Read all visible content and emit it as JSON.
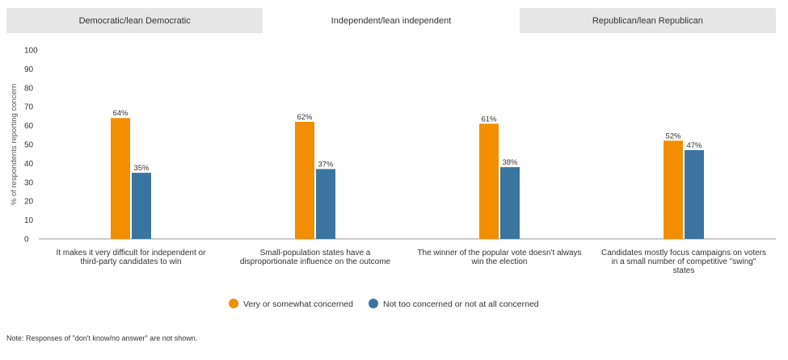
{
  "tabs": [
    {
      "label": "Democratic/lean Democratic",
      "active": false
    },
    {
      "label": "Independent/lean independent",
      "active": true
    },
    {
      "label": "Republican/lean Republican",
      "active": false
    }
  ],
  "note": "Note: Responses of \"don't know/no answer\" are not shown.",
  "colors": {
    "series_0": "#f28e00",
    "series_1": "#3a759f"
  },
  "chart_data": {
    "type": "bar",
    "title": "",
    "ylabel": "% of respondents reporting concern",
    "ylim": [
      0,
      100
    ],
    "yticks": [
      0,
      10,
      20,
      30,
      40,
      50,
      60,
      70,
      80,
      90,
      100
    ],
    "grid": false,
    "legend": "bottom",
    "categories": [
      [
        "It makes it very difficult for independent or",
        "third-party candidates to win"
      ],
      [
        "Small-population states have a",
        "disproportionate influence on the outcome"
      ],
      [
        "The winner of the popular vote doesn't always",
        "win the election"
      ],
      [
        "Candidates mostly focus campaigns on voters",
        "in a small number of competitive \"swing\"",
        "states"
      ]
    ],
    "series": [
      {
        "name": "Very or somewhat concerned",
        "values": [
          64,
          62,
          61,
          52
        ]
      },
      {
        "name": "Not too concerned or not at all concerned",
        "values": [
          35,
          37,
          38,
          47
        ]
      }
    ]
  }
}
